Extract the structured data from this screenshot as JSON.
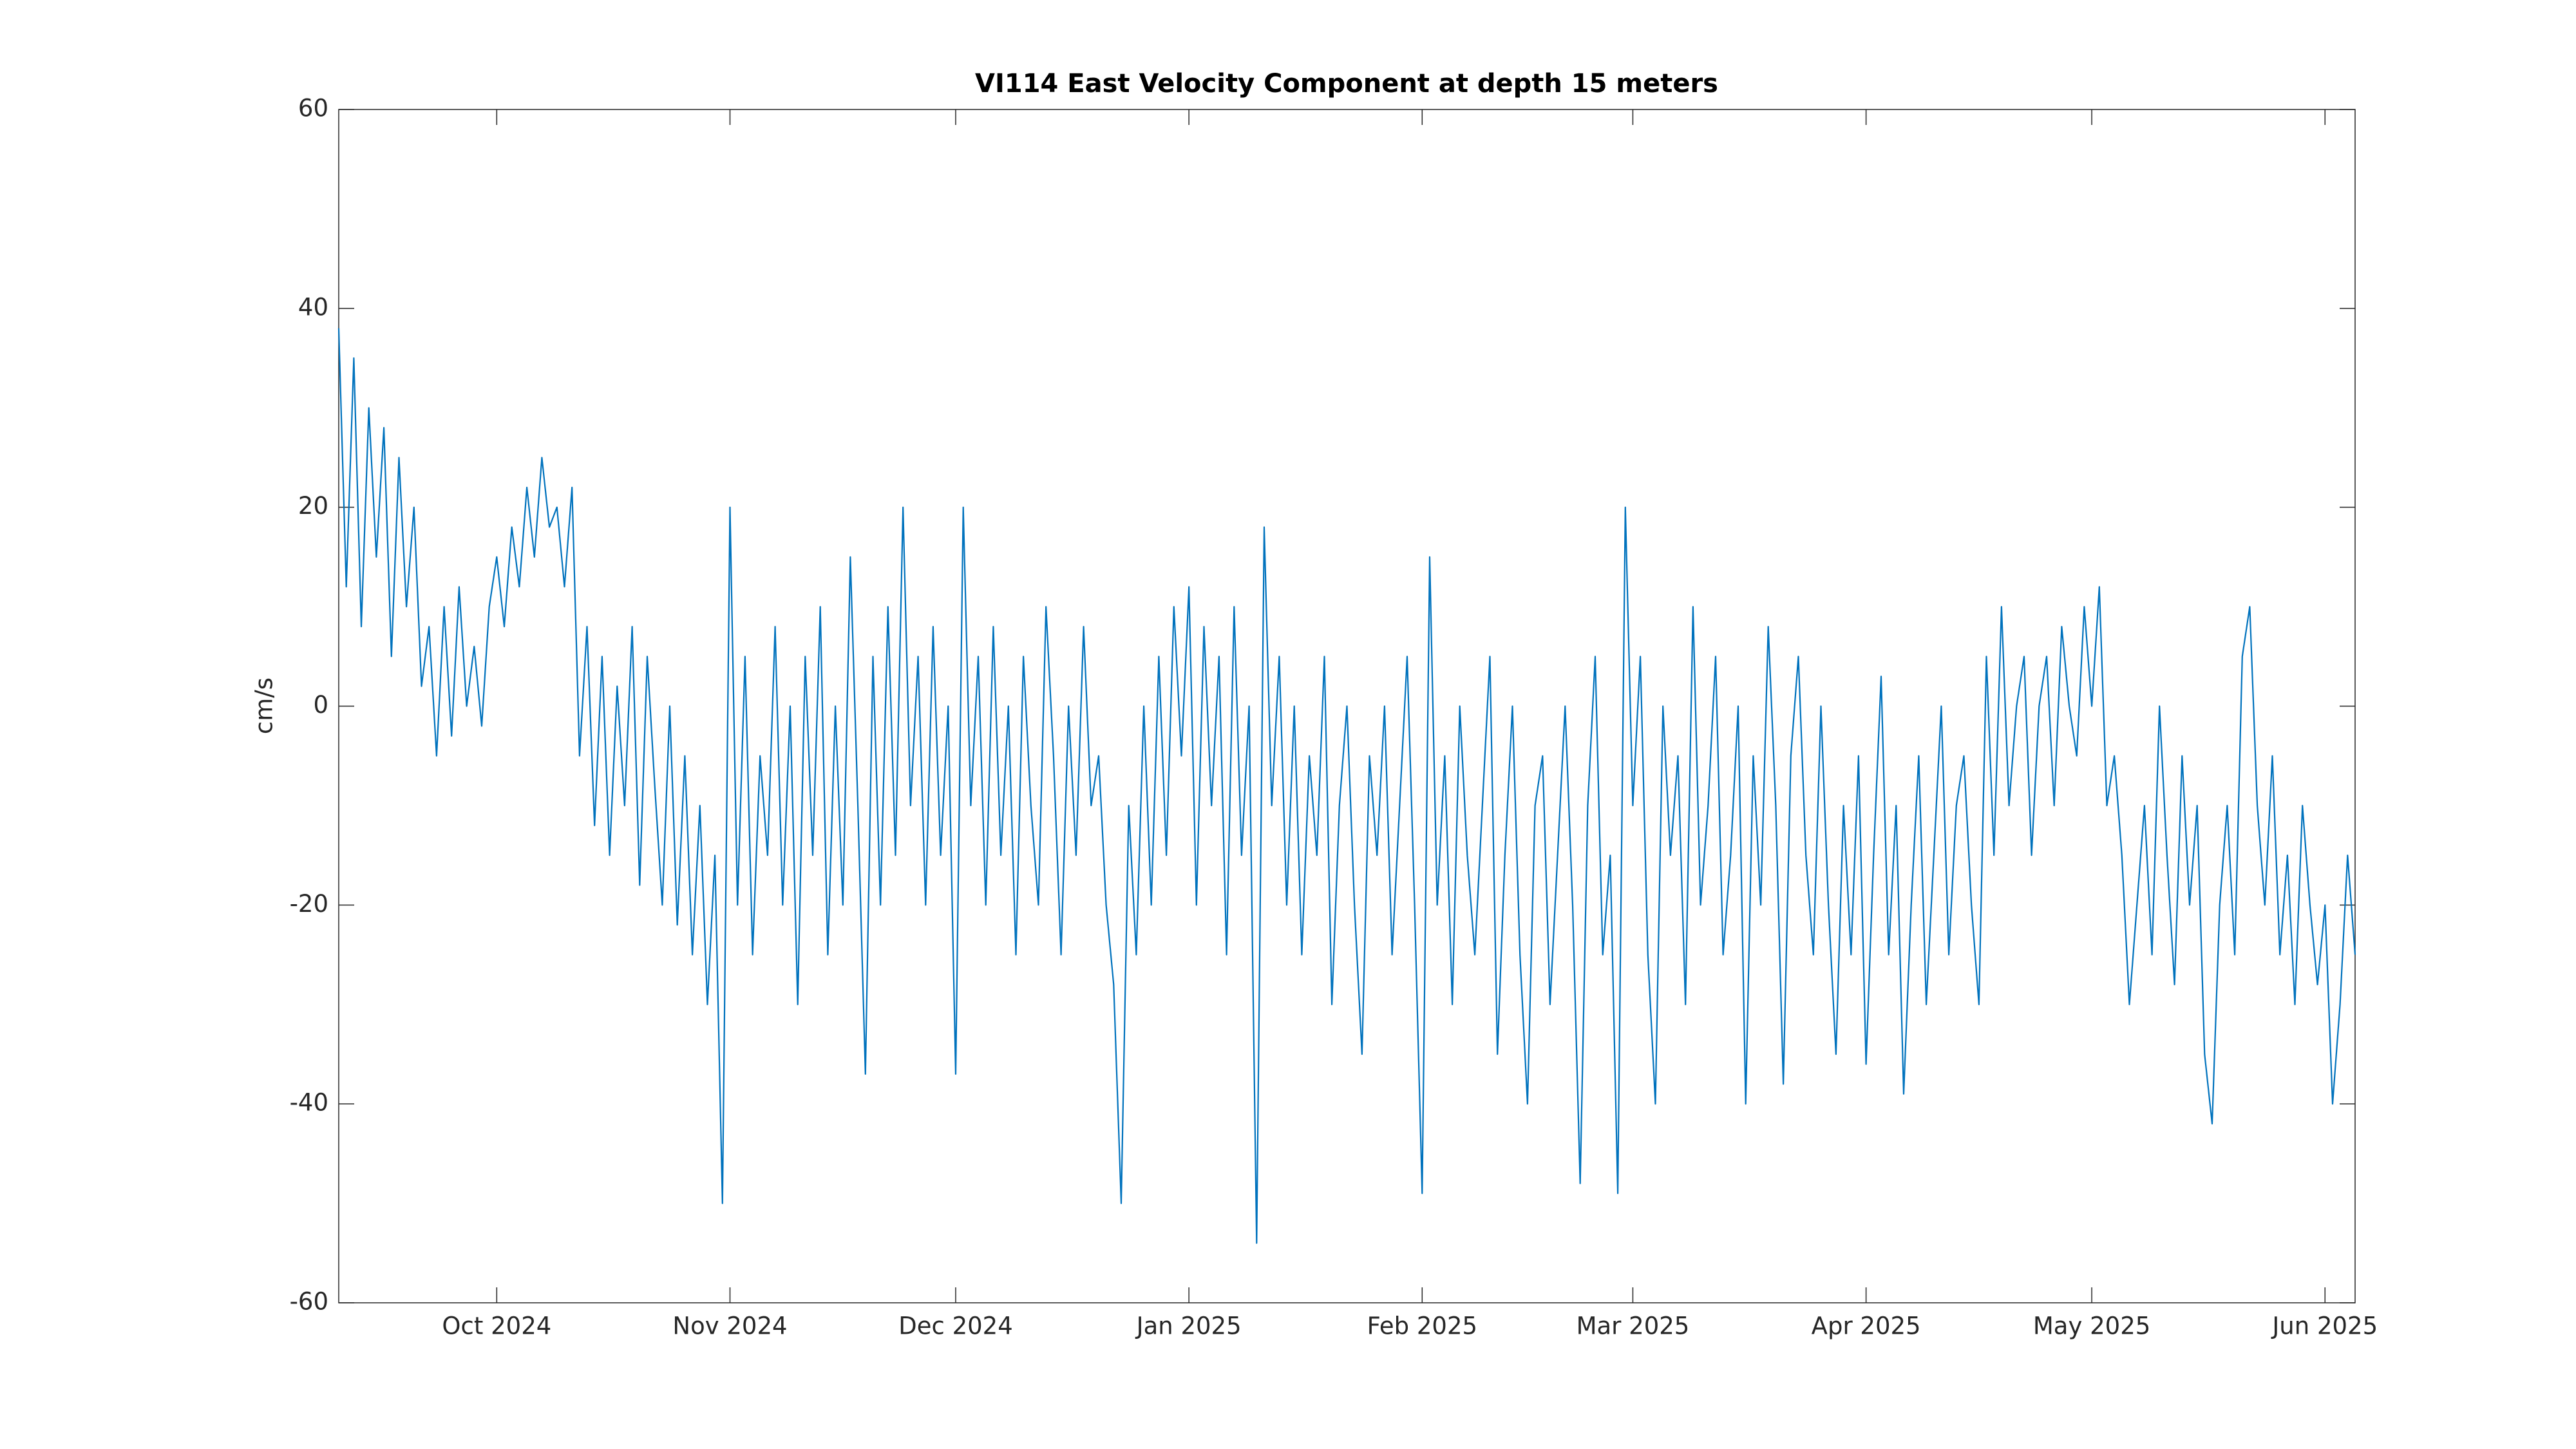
{
  "chart_data": {
    "type": "line",
    "title": "VI114 East Velocity Component at depth 15 meters",
    "ylabel": "cm/s",
    "xlim": [
      "2024-09-10",
      "2025-06-05"
    ],
    "ylim": [
      -60,
      60
    ],
    "yticks": [
      -60,
      -40,
      -20,
      0,
      20,
      40,
      60
    ],
    "xticks": [
      {
        "value": "2024-10-01",
        "label": "Oct 2024"
      },
      {
        "value": "2024-11-01",
        "label": "Nov 2024"
      },
      {
        "value": "2024-12-01",
        "label": "Dec 2024"
      },
      {
        "value": "2025-01-01",
        "label": "Jan 2025"
      },
      {
        "value": "2025-02-01",
        "label": "Feb 2025"
      },
      {
        "value": "2025-03-01",
        "label": "Mar 2025"
      },
      {
        "value": "2025-04-01",
        "label": "Apr 2025"
      },
      {
        "value": "2025-05-01",
        "label": "May 2025"
      },
      {
        "value": "2025-06-01",
        "label": "Jun 2025"
      }
    ],
    "grid": false,
    "x": [
      "2024-09-10",
      "2024-09-11",
      "2024-09-12",
      "2024-09-13",
      "2024-09-14",
      "2024-09-15",
      "2024-09-16",
      "2024-09-17",
      "2024-09-18",
      "2024-09-19",
      "2024-09-20",
      "2024-09-21",
      "2024-09-22",
      "2024-09-23",
      "2024-09-24",
      "2024-09-25",
      "2024-09-26",
      "2024-09-27",
      "2024-09-28",
      "2024-09-29",
      "2024-09-30",
      "2024-10-01",
      "2024-10-02",
      "2024-10-03",
      "2024-10-04",
      "2024-10-05",
      "2024-10-06",
      "2024-10-07",
      "2024-10-08",
      "2024-10-09",
      "2024-10-10",
      "2024-10-11",
      "2024-10-12",
      "2024-10-13",
      "2024-10-14",
      "2024-10-15",
      "2024-10-16",
      "2024-10-17",
      "2024-10-18",
      "2024-10-19",
      "2024-10-20",
      "2024-10-21",
      "2024-10-22",
      "2024-10-23",
      "2024-10-24",
      "2024-10-25",
      "2024-10-26",
      "2024-10-27",
      "2024-10-28",
      "2024-10-29",
      "2024-10-30",
      "2024-10-31",
      "2024-11-01",
      "2024-11-02",
      "2024-11-03",
      "2024-11-04",
      "2024-11-05",
      "2024-11-06",
      "2024-11-07",
      "2024-11-08",
      "2024-11-09",
      "2024-11-10",
      "2024-11-11",
      "2024-11-12",
      "2024-11-13",
      "2024-11-14",
      "2024-11-15",
      "2024-11-16",
      "2024-11-17",
      "2024-11-18",
      "2024-11-19",
      "2024-11-20",
      "2024-11-21",
      "2024-11-22",
      "2024-11-23",
      "2024-11-24",
      "2024-11-25",
      "2024-11-26",
      "2024-11-27",
      "2024-11-28",
      "2024-11-29",
      "2024-11-30",
      "2024-12-01",
      "2024-12-02",
      "2024-12-03",
      "2024-12-04",
      "2024-12-05",
      "2024-12-06",
      "2024-12-07",
      "2024-12-08",
      "2024-12-09",
      "2024-12-10",
      "2024-12-11",
      "2024-12-12",
      "2024-12-13",
      "2024-12-14",
      "2024-12-15",
      "2024-12-16",
      "2024-12-17",
      "2024-12-18",
      "2024-12-19",
      "2024-12-20",
      "2024-12-21",
      "2024-12-22",
      "2024-12-23",
      "2024-12-24",
      "2024-12-25",
      "2024-12-26",
      "2024-12-27",
      "2024-12-28",
      "2024-12-29",
      "2024-12-30",
      "2024-12-31",
      "2025-01-01",
      "2025-01-02",
      "2025-01-03",
      "2025-01-04",
      "2025-01-05",
      "2025-01-06",
      "2025-01-07",
      "2025-01-08",
      "2025-01-09",
      "2025-01-10",
      "2025-01-11",
      "2025-01-12",
      "2025-01-13",
      "2025-01-14",
      "2025-01-15",
      "2025-01-16",
      "2025-01-17",
      "2025-01-18",
      "2025-01-19",
      "2025-01-20",
      "2025-01-21",
      "2025-01-22",
      "2025-01-23",
      "2025-01-24",
      "2025-01-25",
      "2025-01-26",
      "2025-01-27",
      "2025-01-28",
      "2025-01-29",
      "2025-01-30",
      "2025-01-31",
      "2025-02-01",
      "2025-02-02",
      "2025-02-03",
      "2025-02-04",
      "2025-02-05",
      "2025-02-06",
      "2025-02-07",
      "2025-02-08",
      "2025-02-09",
      "2025-02-10",
      "2025-02-11",
      "2025-02-12",
      "2025-02-13",
      "2025-02-14",
      "2025-02-15",
      "2025-02-16",
      "2025-02-17",
      "2025-02-18",
      "2025-02-19",
      "2025-02-20",
      "2025-02-21",
      "2025-02-22",
      "2025-02-23",
      "2025-02-24",
      "2025-02-25",
      "2025-02-26",
      "2025-02-27",
      "2025-02-28",
      "2025-03-01",
      "2025-03-02",
      "2025-03-03",
      "2025-03-04",
      "2025-03-05",
      "2025-03-06",
      "2025-03-07",
      "2025-03-08",
      "2025-03-09",
      "2025-03-10",
      "2025-03-11",
      "2025-03-12",
      "2025-03-13",
      "2025-03-14",
      "2025-03-15",
      "2025-03-16",
      "2025-03-17",
      "2025-03-18",
      "2025-03-19",
      "2025-03-20",
      "2025-03-21",
      "2025-03-22",
      "2025-03-23",
      "2025-03-24",
      "2025-03-25",
      "2025-03-26",
      "2025-03-27",
      "2025-03-28",
      "2025-03-29",
      "2025-03-30",
      "2025-03-31",
      "2025-04-01",
      "2025-04-02",
      "2025-04-03",
      "2025-04-04",
      "2025-04-05",
      "2025-04-06",
      "2025-04-07",
      "2025-04-08",
      "2025-04-09",
      "2025-04-10",
      "2025-04-11",
      "2025-04-12",
      "2025-04-13",
      "2025-04-14",
      "2025-04-15",
      "2025-04-16",
      "2025-04-17",
      "2025-04-18",
      "2025-04-19",
      "2025-04-20",
      "2025-04-21",
      "2025-04-22",
      "2025-04-23",
      "2025-04-24",
      "2025-04-25",
      "2025-04-26",
      "2025-04-27",
      "2025-04-28",
      "2025-04-29",
      "2025-04-30",
      "2025-05-01",
      "2025-05-02",
      "2025-05-03",
      "2025-05-04",
      "2025-05-05",
      "2025-05-06",
      "2025-05-07",
      "2025-05-08",
      "2025-05-09",
      "2025-05-10",
      "2025-05-11",
      "2025-05-12",
      "2025-05-13",
      "2025-05-14",
      "2025-05-15",
      "2025-05-16",
      "2025-05-17",
      "2025-05-18",
      "2025-05-19",
      "2025-05-20",
      "2025-05-21",
      "2025-05-22",
      "2025-05-23",
      "2025-05-24",
      "2025-05-25",
      "2025-05-26",
      "2025-05-27",
      "2025-05-28",
      "2025-05-29",
      "2025-05-30",
      "2025-05-31",
      "2025-06-01",
      "2025-06-02",
      "2025-06-03",
      "2025-06-04",
      "2025-06-05"
    ],
    "series": [
      {
        "color": "#0072bd",
        "values": [
          38,
          12,
          35,
          8,
          30,
          15,
          28,
          5,
          25,
          10,
          20,
          2,
          8,
          -5,
          10,
          -3,
          12,
          0,
          6,
          -2,
          10,
          15,
          8,
          18,
          12,
          22,
          15,
          25,
          18,
          20,
          12,
          22,
          -5,
          8,
          -12,
          5,
          -15,
          2,
          -10,
          8,
          -18,
          5,
          -8,
          -20,
          0,
          -22,
          -5,
          -25,
          -10,
          -30,
          -15,
          -50,
          20,
          -20,
          5,
          -25,
          -5,
          -15,
          8,
          -20,
          0,
          -30,
          5,
          -15,
          10,
          -25,
          0,
          -20,
          15,
          -10,
          -37,
          5,
          -20,
          10,
          -15,
          20,
          -10,
          5,
          -20,
          8,
          -15,
          0,
          -37,
          20,
          -10,
          5,
          -20,
          8,
          -15,
          0,
          -25,
          5,
          -10,
          -20,
          10,
          -5,
          -25,
          0,
          -15,
          8,
          -10,
          -5,
          -20,
          -28,
          -50,
          -10,
          -25,
          0,
          -20,
          5,
          -15,
          10,
          -5,
          12,
          -20,
          8,
          -10,
          5,
          -25,
          10,
          -15,
          0,
          -54,
          18,
          -10,
          5,
          -20,
          0,
          -25,
          -5,
          -15,
          5,
          -30,
          -10,
          0,
          -20,
          -35,
          -5,
          -15,
          0,
          -25,
          -10,
          5,
          -20,
          -49,
          15,
          -20,
          -5,
          -30,
          0,
          -15,
          -25,
          -10,
          5,
          -35,
          -15,
          0,
          -25,
          -40,
          -10,
          -5,
          -30,
          -15,
          0,
          -20,
          -48,
          -10,
          5,
          -25,
          -15,
          -49,
          20,
          -10,
          5,
          -25,
          -40,
          0,
          -15,
          -5,
          -30,
          10,
          -20,
          -10,
          5,
          -25,
          -15,
          0,
          -40,
          -5,
          -20,
          8,
          -10,
          -38,
          -5,
          5,
          -15,
          -25,
          0,
          -20,
          -35,
          -10,
          -25,
          -5,
          -36,
          -15,
          3,
          -25,
          -10,
          -39,
          -20,
          -5,
          -30,
          -15,
          0,
          -25,
          -10,
          -5,
          -20,
          -30,
          5,
          -15,
          10,
          -10,
          0,
          5,
          -15,
          0,
          5,
          -10,
          8,
          0,
          -5,
          10,
          0,
          12,
          -10,
          -5,
          -15,
          -30,
          -20,
          -10,
          -25,
          0,
          -15,
          -28,
          -5,
          -20,
          -10,
          -35,
          -42,
          -20,
          -10,
          -25,
          5,
          10,
          -10,
          -20,
          -5,
          -25,
          -15,
          -30,
          -10,
          -20,
          -28,
          -20,
          -40,
          -30,
          -15,
          -25
        ]
      }
    ]
  }
}
